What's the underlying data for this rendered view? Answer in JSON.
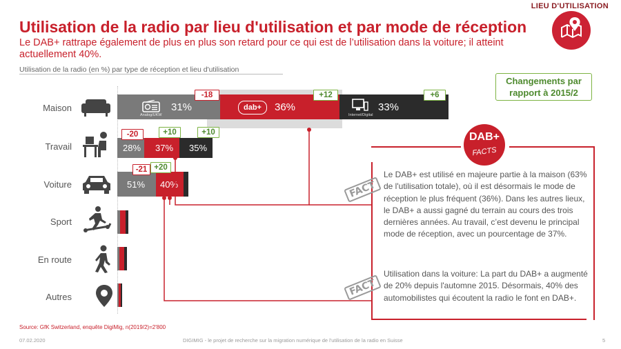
{
  "header": {
    "top_label": "LIEU D'UTILISATION",
    "title": "Utilisation de la radio par lieu d'utilisation et par mode de réception",
    "subtitle": "Le DAB+ rattrape également de plus en plus son retard pour ce qui est de l’utilisation dans la voiture; il atteint actuellement 40%.",
    "chart_caption": "Utilisation de la radio (en %) par type de réception et lieu d'utilisation"
  },
  "changes_box": {
    "line1": "Changements par",
    "line2": "rapport à 2015/2"
  },
  "icon_labels": {
    "analog": "Analog/UKW",
    "dab": "dab+",
    "internet": "Internet/Digital"
  },
  "colors": {
    "analog": "#7a7a7a",
    "dab": "#c8202b",
    "internet": "#2b2b2b",
    "shadow": "#d9d9d9",
    "accent": "#c8202b",
    "positive": "#7cb342"
  },
  "icons": {
    "maison": "sofa-icon",
    "travail": "desk-worker-icon",
    "voiture": "car-icon",
    "sport": "treadmill-icon",
    "en_route": "walking-person-icon",
    "autres": "location-pin-icon",
    "top_right": "map-pin-icon",
    "facts_badge": "dab-facts-badge",
    "radio": "radio-icon",
    "computer": "computer-icon"
  },
  "chart_data": {
    "type": "bar",
    "stacked": true,
    "categories": [
      "Maison",
      "Travail",
      "Voiture",
      "Sport",
      "En route",
      "Autres"
    ],
    "series": [
      {
        "name": "Analog/UKW",
        "values": [
          31,
          28,
          51,
          null,
          null,
          null
        ]
      },
      {
        "name": "DAB+",
        "values": [
          36,
          37,
          40,
          null,
          null,
          null
        ]
      },
      {
        "name": "Internet/Digital",
        "values": [
          33,
          35,
          null,
          null,
          null,
          null
        ]
      }
    ],
    "changes_vs_2015_2": [
      {
        "category": "Maison",
        "values": [
          "-18",
          "+12",
          "+6"
        ]
      },
      {
        "category": "Travail",
        "values": [
          "-20",
          "+10",
          "+10"
        ]
      },
      {
        "category": "Voiture",
        "values": [
          "-21",
          "+20"
        ]
      }
    ],
    "value_labels": {
      "Maison": [
        "31%",
        "36%",
        "33%"
      ],
      "Travail": [
        "28%",
        "37%",
        "35%"
      ],
      "Voiture": [
        "51%",
        "40%"
      ]
    }
  },
  "facts": {
    "badge_top": "DAB+",
    "badge_bottom": "FACTS",
    "stamp": "FACT",
    "fact1": "Le DAB+ est utilisé en majeure partie à la maison (63% de l'utilisation totale), où il est désormais le mode de réception le plus fréquent (36%). Dans les autres lieux, le DAB+ a aussi gagné du terrain au cours des trois dernières années. Au travail, c’est devenu le principal mode de réception, avec un pourcentage de 37%.",
    "fact2": "Utilisation dans la voiture: La part du DAB+ a augmenté de 20% depuis l'automne 2015. Désormais, 40% des automobilistes qui écoutent la radio le font en DAB+."
  },
  "footer": {
    "source": "Source: GfK Switzerland, enquête DigiMig, n(2019/2)=2'800",
    "date": "07.02.2020",
    "center": "DIGIMIG - le projet de recherche sur la migration numérique de l'utilisation de la radio en Suisse",
    "page": "5"
  }
}
